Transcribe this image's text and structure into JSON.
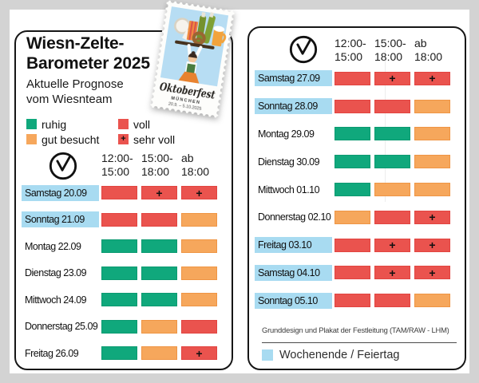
{
  "colors": {
    "page_bg": "#d3d3d3",
    "card_bg": "#ffffff",
    "card_border": "#161616",
    "ruhig": "#10a87c",
    "gut_besucht": "#f6a75c",
    "voll": "#ea534e",
    "sehr_voll": "#ea534e",
    "weekend": "#a8dbf1"
  },
  "statuses": {
    "ruhig": {
      "label": "ruhig",
      "color": "#10a87c",
      "border": "#0c9a71",
      "plus": false
    },
    "gut_besucht": {
      "label": "gut besucht",
      "color": "#f6a75c",
      "border": "#ef9544",
      "plus": false
    },
    "voll": {
      "label": "voll",
      "color": "#ea534e",
      "border": "#e24440",
      "plus": false
    },
    "sehr_voll": {
      "label": "sehr voll",
      "color": "#ea534e",
      "border": "#e24440",
      "plus": true
    }
  },
  "left_card": {
    "title_line1": "Wiesn-Zelte-",
    "title_line2": "Barometer 2025",
    "subtitle_line1": "Aktuelle Prognose",
    "subtitle_line2": "vom Wiesnteam",
    "legend": {
      "ruhig": "ruhig",
      "gut_besucht": "gut besucht",
      "voll": "voll",
      "sehr_voll": "sehr voll"
    },
    "time_columns": [
      [
        "12:00-",
        "15:00"
      ],
      [
        "15:00-",
        "18:00"
      ],
      [
        "ab",
        "18:00"
      ]
    ],
    "rows": [
      {
        "day": "Samstag 20.09",
        "weekend": true,
        "cells": [
          "voll",
          "sehr_voll",
          "sehr_voll"
        ]
      },
      {
        "day": "Sonntag 21.09",
        "weekend": true,
        "cells": [
          "voll",
          "voll",
          "gut_besucht"
        ]
      },
      {
        "day": "Montag 22.09",
        "weekend": false,
        "cells": [
          "ruhig",
          "ruhig",
          "gut_besucht"
        ]
      },
      {
        "day": "Dienstag 23.09",
        "weekend": false,
        "cells": [
          "ruhig",
          "ruhig",
          "gut_besucht"
        ]
      },
      {
        "day": "Mittwoch 24.09",
        "weekend": false,
        "cells": [
          "ruhig",
          "ruhig",
          "gut_besucht"
        ]
      },
      {
        "day": "Donnerstag 25.09",
        "weekend": false,
        "cells": [
          "ruhig",
          "gut_besucht",
          "voll"
        ]
      },
      {
        "day": "Freitag 26.09",
        "weekend": false,
        "cells": [
          "ruhig",
          "gut_besucht",
          "sehr_voll"
        ]
      }
    ]
  },
  "right_card": {
    "time_columns": [
      [
        "12:00-",
        "15:00"
      ],
      [
        "15:00-",
        "18:00"
      ],
      [
        "ab",
        "18:00"
      ]
    ],
    "rows": [
      {
        "day": "Samstag 27.09",
        "weekend": true,
        "cells": [
          "voll",
          "sehr_voll",
          "sehr_voll"
        ]
      },
      {
        "day": "Sonntag 28.09",
        "weekend": true,
        "cells": [
          "voll",
          "voll",
          "gut_besucht"
        ]
      },
      {
        "day": "Montag 29.09",
        "weekend": false,
        "cells": [
          "ruhig",
          "ruhig",
          "gut_besucht"
        ]
      },
      {
        "day": "Dienstag 30.09",
        "weekend": false,
        "cells": [
          "ruhig",
          "ruhig",
          "gut_besucht"
        ]
      },
      {
        "day": "Mittwoch 01.10",
        "weekend": false,
        "cells": [
          "ruhig",
          "gut_besucht",
          "gut_besucht"
        ]
      },
      {
        "day": "Donnerstag 02.10",
        "weekend": false,
        "cells": [
          "gut_besucht",
          "voll",
          "sehr_voll"
        ]
      },
      {
        "day": "Freitag 03.10",
        "weekend": true,
        "cells": [
          "voll",
          "sehr_voll",
          "sehr_voll"
        ]
      },
      {
        "day": "Samstag 04.10",
        "weekend": true,
        "cells": [
          "voll",
          "sehr_voll",
          "sehr_voll"
        ]
      },
      {
        "day": "Sonntag 05.10",
        "weekend": true,
        "cells": [
          "voll",
          "voll",
          "gut_besucht"
        ]
      }
    ],
    "footer_note": "Grunddesign und Plakat der Festleitung (TAM/RAW - LHM)",
    "weekend_legend": "Wochenende / Feiertag"
  },
  "stamp": {
    "title": "Oktoberfest",
    "city": "MÜNCHEN",
    "dates": "20.9. – 5.10.2025"
  }
}
